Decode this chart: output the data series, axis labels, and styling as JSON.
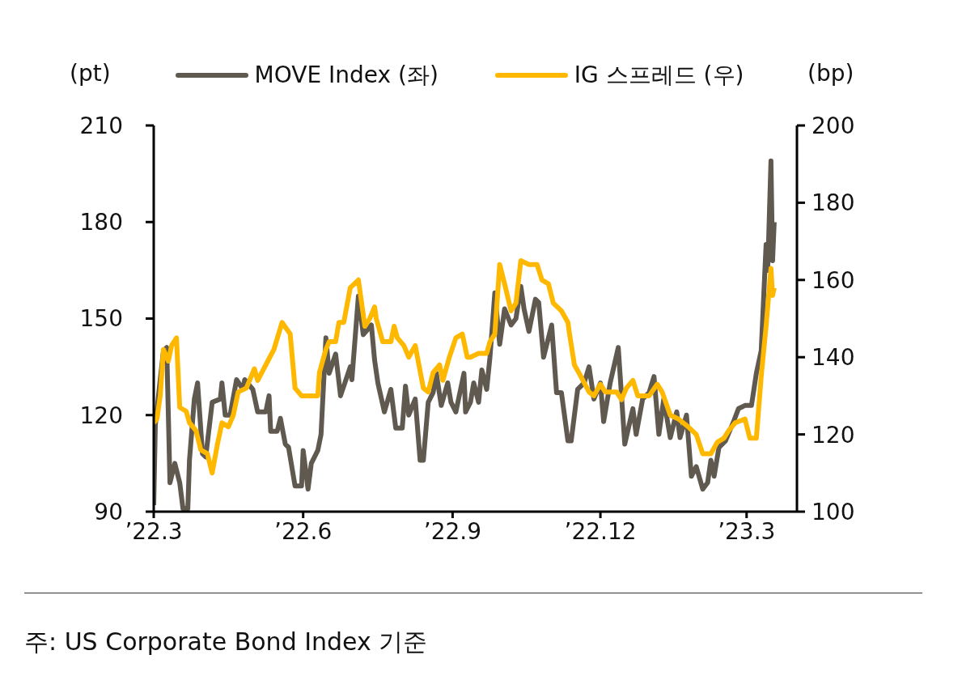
{
  "chart_data": {
    "type": "line",
    "ylabel": "(pt)",
    "y2label": "(bp)",
    "legend": "top",
    "marker": "none",
    "line_style": "solid",
    "xlim": [
      "2022-03-01",
      "2023-04-01"
    ],
    "xticks": [
      {
        "value": "2022-03-01",
        "label": "’22.3"
      },
      {
        "value": "2022-06-01",
        "label": "’22.6"
      },
      {
        "value": "2022-09-01",
        "label": "’22.9"
      },
      {
        "value": "2022-12-01",
        "label": "’22.12"
      },
      {
        "value": "2023-03-01",
        "label": "’23.3"
      }
    ],
    "ylim": [
      90,
      210
    ],
    "yticks": [
      90,
      120,
      150,
      180,
      210
    ],
    "y2lim": [
      100,
      200
    ],
    "y2ticks": [
      100,
      120,
      140,
      160,
      180,
      200
    ],
    "series": [
      {
        "name": "MOVE Index (좌)",
        "color": "#5f5950",
        "x": [
          "2022-03-01",
          "2022-03-02",
          "2022-03-05",
          "2022-03-07",
          "2022-03-09",
          "2022-03-11",
          "2022-03-14",
          "2022-03-17",
          "2022-03-19",
          "2022-03-22",
          "2022-03-23",
          "2022-03-26",
          "2022-03-28",
          "2022-03-31",
          "2022-04-02",
          "2022-04-06",
          "2022-04-11",
          "2022-04-12",
          "2022-04-14",
          "2022-04-17",
          "2022-04-21",
          "2022-04-25",
          "2022-04-26",
          "2022-05-01",
          "2022-05-04",
          "2022-05-09",
          "2022-05-11",
          "2022-05-12",
          "2022-05-16",
          "2022-05-18",
          "2022-05-21",
          "2022-05-23",
          "2022-05-27",
          "2022-05-31",
          "2022-06-01",
          "2022-06-04",
          "2022-06-06",
          "2022-06-10",
          "2022-06-12",
          "2022-06-15",
          "2022-06-17",
          "2022-06-21",
          "2022-06-24",
          "2022-06-30",
          "2022-07-01",
          "2022-07-03",
          "2022-07-05",
          "2022-07-08",
          "2022-07-13",
          "2022-07-15",
          "2022-07-17",
          "2022-07-21",
          "2022-07-25",
          "2022-07-28",
          "2022-08-01",
          "2022-08-03",
          "2022-08-05",
          "2022-08-09",
          "2022-08-12",
          "2022-08-14",
          "2022-08-17",
          "2022-08-20",
          "2022-08-22",
          "2022-08-25",
          "2022-08-29",
          "2022-08-31",
          "2022-09-03",
          "2022-09-08",
          "2022-09-09",
          "2022-09-12",
          "2022-09-14",
          "2022-09-17",
          "2022-09-19",
          "2022-09-22",
          "2022-09-24",
          "2022-09-27",
          "2022-09-30",
          "2022-10-03",
          "2022-10-07",
          "2022-10-10",
          "2022-10-13",
          "2022-10-15",
          "2022-10-18",
          "2022-10-22",
          "2022-10-24",
          "2022-10-27",
          "2022-10-28",
          "2022-11-01",
          "2022-11-04",
          "2022-11-07",
          "2022-11-11",
          "2022-11-13",
          "2022-11-17",
          "2022-11-21",
          "2022-11-24",
          "2022-11-27",
          "2022-12-01",
          "2022-12-03",
          "2022-12-07",
          "2022-12-12",
          "2022-12-16",
          "2022-12-21",
          "2022-12-23",
          "2022-12-27",
          "2022-12-31",
          "2023-01-03",
          "2023-01-06",
          "2023-01-09",
          "2023-01-13",
          "2023-01-17",
          "2023-01-19",
          "2023-01-23",
          "2023-01-26",
          "2023-01-29",
          "2023-02-02",
          "2023-02-05",
          "2023-02-07",
          "2023-02-09",
          "2023-02-12",
          "2023-02-16",
          "2023-02-21",
          "2023-02-24",
          "2023-02-28",
          "2023-03-04",
          "2023-03-07",
          "2023-03-10",
          "2023-03-13",
          "2023-03-14",
          "2023-03-16",
          "2023-03-17",
          "2023-03-18"
        ],
        "values": [
          92,
          117,
          131,
          140,
          141,
          99,
          105,
          99,
          91,
          91,
          106,
          125,
          130,
          108,
          107,
          124,
          125,
          130,
          120,
          120,
          131,
          128,
          131,
          128,
          121,
          121,
          126,
          115,
          115,
          119,
          111,
          110,
          98,
          98,
          109,
          97,
          105,
          109,
          114,
          144,
          133,
          139,
          126,
          135,
          131,
          144,
          157,
          145,
          148,
          137,
          130,
          121,
          128,
          116,
          116,
          129,
          120,
          125,
          106,
          106,
          124,
          127,
          133,
          123,
          130,
          124,
          121,
          133,
          121,
          124,
          130,
          124,
          134,
          128,
          138,
          158,
          142,
          153,
          148,
          150,
          160,
          153,
          146,
          156,
          155,
          138,
          140,
          148,
          127,
          127,
          112,
          112,
          128,
          130,
          135,
          125,
          130,
          118,
          130,
          141,
          111,
          122,
          114,
          125,
          127,
          132,
          114,
          125,
          113,
          121,
          113,
          120,
          101,
          104,
          97,
          99,
          106,
          101,
          110,
          112,
          118,
          122,
          123,
          123,
          133,
          140,
          173,
          165,
          199,
          168,
          180
        ]
      },
      {
        "name": "IG 스프레드 (우)",
        "color": "#ffb800",
        "axis": "y2",
        "x": [
          "2022-03-01",
          "2022-03-03",
          "2022-03-05",
          "2022-03-07",
          "2022-03-10",
          "2022-03-12",
          "2022-03-15",
          "2022-03-17",
          "2022-03-21",
          "2022-03-23",
          "2022-03-27",
          "2022-03-30",
          "2022-04-03",
          "2022-04-06",
          "2022-04-09",
          "2022-04-12",
          "2022-04-16",
          "2022-04-19",
          "2022-04-22",
          "2022-04-27",
          "2022-05-02",
          "2022-05-04",
          "2022-05-09",
          "2022-05-14",
          "2022-05-19",
          "2022-05-24",
          "2022-05-27",
          "2022-05-31",
          "2022-06-06",
          "2022-06-10",
          "2022-06-11",
          "2022-06-15",
          "2022-06-17",
          "2022-06-21",
          "2022-06-23",
          "2022-06-26",
          "2022-06-30",
          "2022-07-05",
          "2022-07-09",
          "2022-07-12",
          "2022-07-15",
          "2022-07-16",
          "2022-07-20",
          "2022-07-25",
          "2022-07-27",
          "2022-07-29",
          "2022-08-02",
          "2022-08-05",
          "2022-08-09",
          "2022-08-14",
          "2022-08-17",
          "2022-08-20",
          "2022-08-24",
          "2022-08-26",
          "2022-08-30",
          "2022-09-03",
          "2022-09-07",
          "2022-09-10",
          "2022-09-12",
          "2022-09-17",
          "2022-09-22",
          "2022-09-24",
          "2022-09-27",
          "2022-09-30",
          "2022-10-03",
          "2022-10-07",
          "2022-10-10",
          "2022-10-13",
          "2022-10-18",
          "2022-10-23",
          "2022-10-26",
          "2022-10-30",
          "2022-11-02",
          "2022-11-07",
          "2022-11-11",
          "2022-11-12",
          "2022-11-15",
          "2022-11-19",
          "2022-11-24",
          "2022-11-27",
          "2022-12-01",
          "2022-12-04",
          "2022-12-11",
          "2022-12-14",
          "2022-12-17",
          "2022-12-21",
          "2022-12-24",
          "2022-12-31",
          "2023-01-05",
          "2023-01-08",
          "2023-01-13",
          "2023-01-18",
          "2023-01-24",
          "2023-01-29",
          "2023-02-02",
          "2023-02-07",
          "2023-02-11",
          "2023-02-15",
          "2023-02-18",
          "2023-02-22",
          "2023-02-28",
          "2023-03-03",
          "2023-03-07",
          "2023-03-10",
          "2023-03-13",
          "2023-03-16",
          "2023-03-17",
          "2023-03-18"
        ],
        "values": [
          123,
          124,
          130,
          142,
          139,
          143,
          145,
          127,
          126,
          123,
          121,
          116,
          115,
          110,
          117,
          123,
          122,
          125,
          131,
          132,
          137,
          134,
          138,
          142,
          149,
          146,
          132,
          130,
          130,
          130,
          136,
          142,
          144,
          144,
          149,
          149,
          158,
          160,
          148,
          150,
          153,
          150,
          144,
          144,
          148,
          145,
          143,
          140,
          143,
          132,
          131,
          136,
          138,
          134,
          140,
          145,
          146,
          140,
          140,
          141,
          141,
          144,
          146,
          164,
          159,
          152,
          154,
          165,
          164,
          164,
          160,
          159,
          154,
          152,
          149,
          146,
          138,
          135,
          131,
          130,
          133,
          131,
          131,
          129,
          132,
          134,
          130,
          130,
          133,
          131,
          125,
          124,
          122,
          120,
          115,
          115,
          118,
          119,
          121,
          123,
          124,
          119,
          119,
          135,
          148,
          163,
          156,
          158
        ]
      }
    ],
    "annotations": [
      "주: US Corporate Bond Index 기준"
    ]
  }
}
